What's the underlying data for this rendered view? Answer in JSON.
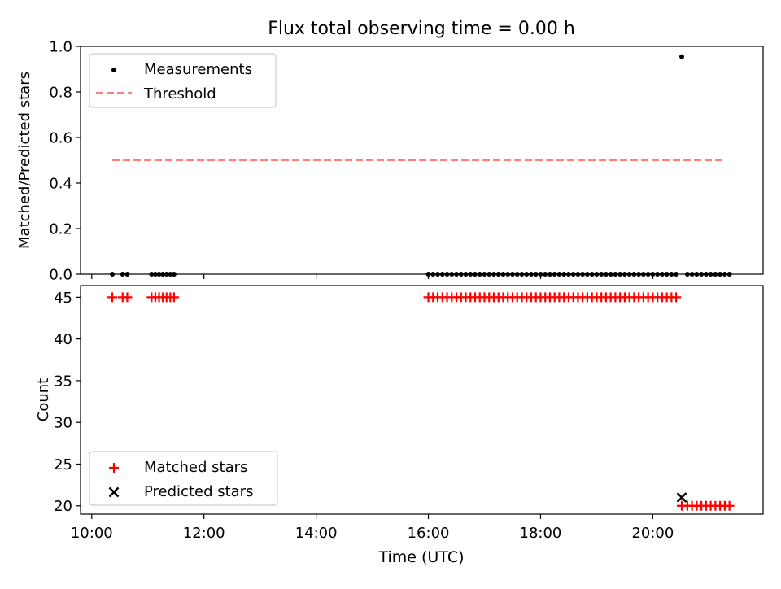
{
  "chart_data": {
    "type": "scatter",
    "title": "Flux total observing time = 0.00 h",
    "xlabel": "Time (UTC)",
    "x_ticks": [
      "10:00",
      "12:00",
      "14:00",
      "16:00",
      "18:00",
      "20:00"
    ],
    "xlim": [
      "09:48",
      "21:58"
    ],
    "panels": [
      {
        "ylabel": "Matched/Predicted stars",
        "ylim": [
          0,
          1
        ],
        "y_ticks": [
          "0.0",
          "0.2",
          "0.4",
          "0.6",
          "0.8",
          "1.0"
        ],
        "legend": {
          "position": "upper-left"
        },
        "series": [
          {
            "name": "Measurements",
            "marker": "dot",
            "color": "#000000",
            "points": [
              [
                "10:22",
                0
              ],
              [
                "10:33",
                0
              ],
              [
                "10:38",
                0
              ],
              [
                "11:04",
                0
              ],
              [
                "11:08",
                0
              ],
              [
                "11:12",
                0
              ],
              [
                "11:16",
                0
              ],
              [
                "11:20",
                0
              ],
              [
                "11:24",
                0
              ],
              [
                "11:28",
                0
              ],
              [
                "16:00",
                0
              ],
              [
                "16:05",
                0
              ],
              [
                "16:10",
                0
              ],
              [
                "16:15",
                0
              ],
              [
                "16:20",
                0
              ],
              [
                "16:25",
                0
              ],
              [
                "16:30",
                0
              ],
              [
                "16:35",
                0
              ],
              [
                "16:40",
                0
              ],
              [
                "16:45",
                0
              ],
              [
                "16:50",
                0
              ],
              [
                "16:55",
                0
              ],
              [
                "17:00",
                0
              ],
              [
                "17:05",
                0
              ],
              [
                "17:10",
                0
              ],
              [
                "17:15",
                0
              ],
              [
                "17:20",
                0
              ],
              [
                "17:25",
                0
              ],
              [
                "17:30",
                0
              ],
              [
                "17:35",
                0
              ],
              [
                "17:40",
                0
              ],
              [
                "17:45",
                0
              ],
              [
                "17:50",
                0
              ],
              [
                "17:55",
                0
              ],
              [
                "18:00",
                0
              ],
              [
                "18:05",
                0
              ],
              [
                "18:10",
                0
              ],
              [
                "18:15",
                0
              ],
              [
                "18:20",
                0
              ],
              [
                "18:25",
                0
              ],
              [
                "18:30",
                0
              ],
              [
                "18:35",
                0
              ],
              [
                "18:40",
                0
              ],
              [
                "18:45",
                0
              ],
              [
                "18:50",
                0
              ],
              [
                "18:55",
                0
              ],
              [
                "19:00",
                0
              ],
              [
                "19:05",
                0
              ],
              [
                "19:10",
                0
              ],
              [
                "19:15",
                0
              ],
              [
                "19:20",
                0
              ],
              [
                "19:25",
                0
              ],
              [
                "19:30",
                0
              ],
              [
                "19:35",
                0
              ],
              [
                "19:40",
                0
              ],
              [
                "19:45",
                0
              ],
              [
                "19:50",
                0
              ],
              [
                "19:55",
                0
              ],
              [
                "20:00",
                0
              ],
              [
                "20:05",
                0
              ],
              [
                "20:10",
                0
              ],
              [
                "20:15",
                0
              ],
              [
                "20:20",
                0
              ],
              [
                "20:25",
                0
              ],
              [
                "20:31",
                0.955
              ],
              [
                "20:37",
                0
              ],
              [
                "20:42",
                0
              ],
              [
                "20:47",
                0
              ],
              [
                "20:52",
                0
              ],
              [
                "20:57",
                0
              ],
              [
                "21:02",
                0
              ],
              [
                "21:07",
                0
              ],
              [
                "21:12",
                0
              ],
              [
                "21:17",
                0
              ],
              [
                "21:22",
                0
              ]
            ]
          },
          {
            "name": "Threshold",
            "marker": "dashed-line",
            "color": "#ff7f7f",
            "points": [
              [
                "10:22",
                0.5
              ],
              [
                "21:17",
                0.5
              ]
            ]
          }
        ]
      },
      {
        "ylabel": "Count",
        "ylim": [
          19,
          46.4
        ],
        "y_ticks": [
          "20",
          "25",
          "30",
          "35",
          "40",
          "45"
        ],
        "legend": {
          "position": "lower-left"
        },
        "series": [
          {
            "name": "Matched stars",
            "marker": "plus",
            "color": "#ff0000",
            "points": [
              [
                "10:22",
                45
              ],
              [
                "10:33",
                45
              ],
              [
                "10:38",
                45
              ],
              [
                "11:04",
                45
              ],
              [
                "11:08",
                45
              ],
              [
                "11:12",
                45
              ],
              [
                "11:16",
                45
              ],
              [
                "11:20",
                45
              ],
              [
                "11:24",
                45
              ],
              [
                "11:28",
                45
              ],
              [
                "16:00",
                45
              ],
              [
                "16:05",
                45
              ],
              [
                "16:10",
                45
              ],
              [
                "16:15",
                45
              ],
              [
                "16:20",
                45
              ],
              [
                "16:25",
                45
              ],
              [
                "16:30",
                45
              ],
              [
                "16:35",
                45
              ],
              [
                "16:40",
                45
              ],
              [
                "16:45",
                45
              ],
              [
                "16:50",
                45
              ],
              [
                "16:55",
                45
              ],
              [
                "17:00",
                45
              ],
              [
                "17:05",
                45
              ],
              [
                "17:10",
                45
              ],
              [
                "17:15",
                45
              ],
              [
                "17:20",
                45
              ],
              [
                "17:25",
                45
              ],
              [
                "17:30",
                45
              ],
              [
                "17:35",
                45
              ],
              [
                "17:40",
                45
              ],
              [
                "17:45",
                45
              ],
              [
                "17:50",
                45
              ],
              [
                "17:55",
                45
              ],
              [
                "18:00",
                45
              ],
              [
                "18:05",
                45
              ],
              [
                "18:10",
                45
              ],
              [
                "18:15",
                45
              ],
              [
                "18:20",
                45
              ],
              [
                "18:25",
                45
              ],
              [
                "18:30",
                45
              ],
              [
                "18:35",
                45
              ],
              [
                "18:40",
                45
              ],
              [
                "18:45",
                45
              ],
              [
                "18:50",
                45
              ],
              [
                "18:55",
                45
              ],
              [
                "19:00",
                45
              ],
              [
                "19:05",
                45
              ],
              [
                "19:10",
                45
              ],
              [
                "19:15",
                45
              ],
              [
                "19:20",
                45
              ],
              [
                "19:25",
                45
              ],
              [
                "19:30",
                45
              ],
              [
                "19:35",
                45
              ],
              [
                "19:40",
                45
              ],
              [
                "19:45",
                45
              ],
              [
                "19:50",
                45
              ],
              [
                "19:55",
                45
              ],
              [
                "20:00",
                45
              ],
              [
                "20:05",
                45
              ],
              [
                "20:10",
                45
              ],
              [
                "20:15",
                45
              ],
              [
                "20:20",
                45
              ],
              [
                "20:25",
                45
              ],
              [
                "20:31",
                20
              ],
              [
                "20:37",
                20
              ],
              [
                "20:42",
                20
              ],
              [
                "20:47",
                20
              ],
              [
                "20:52",
                20
              ],
              [
                "20:57",
                20
              ],
              [
                "21:02",
                20
              ],
              [
                "21:07",
                20
              ],
              [
                "21:12",
                20
              ],
              [
                "21:17",
                20
              ],
              [
                "21:22",
                20
              ]
            ]
          },
          {
            "name": "Predicted stars",
            "marker": "x",
            "color": "#000000",
            "points": [
              [
                "20:31",
                21
              ]
            ]
          }
        ]
      }
    ]
  }
}
